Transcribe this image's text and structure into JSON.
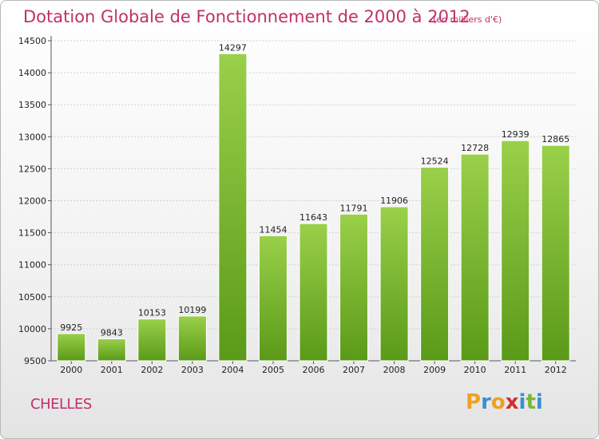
{
  "header": {
    "title": "Dotation Globale de Fonctionnement de 2000 à 2012",
    "unit": "(en milliers d'€)"
  },
  "footer": {
    "city": "CHELLES",
    "logo": {
      "letters": [
        "P",
        "r",
        "o",
        "x",
        "i",
        "t",
        "i"
      ],
      "colors": [
        "#f0a020",
        "#3a8fd0",
        "#f0a020",
        "#d03030",
        "#3a8fd0",
        "#78b832",
        "#3a8fd0"
      ]
    }
  },
  "chart_data": {
    "type": "bar",
    "title": "Dotation Globale de Fonctionnement de 2000 à 2012",
    "categories": [
      "2000",
      "2001",
      "2002",
      "2003",
      "2004",
      "2005",
      "2006",
      "2007",
      "2008",
      "2009",
      "2010",
      "2011",
      "2012"
    ],
    "values": [
      9925,
      9843,
      10153,
      10199,
      14297,
      11454,
      11643,
      11791,
      11906,
      12524,
      12728,
      12939,
      12865
    ],
    "value_labels": [
      "9925",
      "9843",
      "10153",
      "10199",
      "14297",
      "11454",
      "11643",
      "11791",
      "11906",
      "12524",
      "12728",
      "12939",
      "12865"
    ],
    "ylim": [
      9500,
      14500
    ],
    "yticks": [
      "9500",
      "10000",
      "10500",
      "11000",
      "11500",
      "12000",
      "12500",
      "13000",
      "13500",
      "14000",
      "14500"
    ],
    "grid": true,
    "bar_color_top": "#9ad04a",
    "bar_color_bottom": "#5a9a18",
    "xlabel": "",
    "ylabel": ""
  }
}
